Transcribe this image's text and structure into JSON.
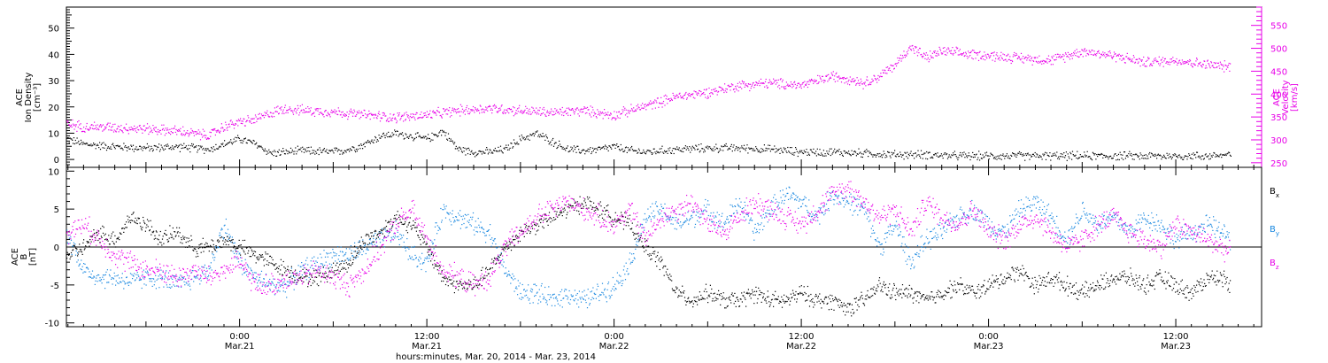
{
  "chart_data": [
    {
      "type": "scatter",
      "panel": "top",
      "ylabel": [
        "ACE",
        "Ion Density",
        "[cm⁻³]"
      ],
      "ylabel_right": [
        "ACE",
        "Velocity",
        "[km/s]"
      ],
      "ylim": [
        -3,
        58
      ],
      "ylim_right": [
        240,
        590
      ],
      "yticks": [
        0,
        10,
        20,
        30,
        40,
        50
      ],
      "yticks_right": [
        250,
        300,
        350,
        400,
        450,
        500,
        550
      ],
      "right_axis_color": "#e800e8",
      "x_unit": "hours since Mar. 20, 2014 00:00",
      "xlim": [
        12.9,
        89.5
      ],
      "series": [
        {
          "name": "Ion Density",
          "axis": "left",
          "color": "#000000",
          "x": [
            12.9,
            14,
            16,
            18,
            20,
            22,
            23,
            24,
            25,
            26,
            28,
            30,
            31,
            32,
            33,
            34,
            35,
            36,
            37,
            38,
            39,
            40,
            41,
            42,
            43,
            44,
            45,
            46,
            47,
            48,
            49,
            50,
            52,
            54,
            56,
            58,
            60,
            62,
            64,
            66,
            68,
            70,
            72,
            74,
            76,
            78,
            80,
            82,
            84,
            86,
            87.5
          ],
          "values": [
            8,
            6,
            5,
            4.5,
            5,
            4,
            6,
            8,
            6,
            2.5,
            3.5,
            3,
            4,
            6,
            9,
            10,
            9,
            8,
            11,
            4,
            3,
            3,
            4,
            8,
            10,
            7,
            4,
            3.5,
            4,
            5,
            3.5,
            3,
            4,
            4.5,
            4.5,
            4,
            3,
            3,
            2.5,
            2,
            2,
            1.5,
            1.5,
            1.5,
            1.5,
            1.5,
            1.5,
            1.5,
            1.5,
            1.5,
            2
          ]
        },
        {
          "name": "Velocity",
          "axis": "right",
          "color": "#e800e8",
          "x": [
            12.9,
            14,
            16,
            18,
            20,
            22,
            23,
            24,
            25,
            26,
            27,
            28,
            30,
            32,
            34,
            36,
            38,
            40,
            42,
            44,
            46,
            48,
            50,
            52,
            54,
            56,
            58,
            60,
            62,
            63,
            64,
            65,
            66,
            67,
            68,
            69,
            70,
            72,
            74,
            76,
            78,
            80,
            82,
            84,
            86,
            87.5
          ],
          "values": [
            335,
            330,
            328,
            325,
            320,
            310,
            330,
            340,
            345,
            360,
            370,
            365,
            362,
            355,
            350,
            355,
            365,
            370,
            365,
            360,
            365,
            355,
            375,
            395,
            405,
            420,
            425,
            420,
            440,
            435,
            425,
            440,
            465,
            505,
            480,
            495,
            490,
            485,
            480,
            475,
            495,
            485,
            470,
            475,
            465,
            460
          ]
        }
      ]
    },
    {
      "type": "scatter",
      "panel": "bottom",
      "ylabel": [
        "ACE",
        "B",
        "[nT]"
      ],
      "ylim": [
        -10.5,
        10.5
      ],
      "yticks": [
        -10,
        -5,
        0,
        5,
        10
      ],
      "zero_line": true,
      "x_unit": "hours since Mar. 20, 2014 00:00",
      "xlim": [
        12.9,
        89.5
      ],
      "series": [
        {
          "name": "Bx",
          "color": "#000000",
          "x": [
            12.9,
            14,
            15,
            16,
            17,
            18,
            19,
            20,
            21,
            22,
            23,
            24,
            25,
            26,
            27,
            28,
            29,
            30,
            31,
            32,
            33,
            34,
            35,
            36,
            37,
            38,
            39,
            40,
            41,
            42,
            43,
            44,
            45,
            46,
            47,
            48,
            49,
            50,
            51,
            52,
            53,
            54,
            55,
            56,
            57,
            58,
            59,
            60,
            61,
            62,
            63,
            64,
            65,
            66,
            67,
            68,
            69,
            70,
            71,
            72,
            73,
            74,
            75,
            76,
            77,
            78,
            79,
            80,
            81,
            82,
            83,
            84,
            85,
            86,
            87,
            87.5
          ],
          "values": [
            -1,
            0,
            2,
            1,
            4,
            3,
            1,
            2,
            0,
            0,
            1,
            0,
            -1,
            -2,
            -3,
            -4,
            -4,
            -3,
            -2,
            1,
            2,
            4,
            3,
            0,
            -4,
            -5,
            -5,
            -3,
            0,
            2,
            3,
            4,
            5,
            6,
            5,
            4,
            3,
            0,
            -2,
            -6,
            -7,
            -6,
            -7,
            -7,
            -6,
            -7,
            -7,
            -6,
            -7,
            -7,
            -8,
            -7,
            -5,
            -6,
            -6,
            -7,
            -6,
            -5,
            -6,
            -5,
            -4,
            -3,
            -5,
            -4,
            -5,
            -6,
            -5,
            -4,
            -4,
            -5,
            -4,
            -5,
            -6,
            -4,
            -4,
            -5
          ]
        },
        {
          "name": "By",
          "color": "#1a88e0",
          "x": [
            12.9,
            14,
            15,
            16,
            17,
            18,
            19,
            20,
            21,
            22,
            23,
            24,
            25,
            26,
            27,
            28,
            29,
            30,
            31,
            32,
            33,
            34,
            35,
            36,
            37,
            38,
            39,
            40,
            41,
            42,
            43,
            44,
            45,
            46,
            47,
            48,
            49,
            50,
            51,
            52,
            53,
            54,
            55,
            56,
            57,
            58,
            59,
            60,
            61,
            62,
            63,
            64,
            65,
            66,
            67,
            68,
            69,
            70,
            71,
            72,
            73,
            74,
            75,
            76,
            77,
            78,
            79,
            80,
            81,
            82,
            83,
            84,
            85,
            86,
            87,
            87.5
          ],
          "values": [
            2,
            -3,
            -4,
            -4,
            -4.5,
            -4,
            -4,
            -5,
            -4,
            -3,
            3,
            -2,
            -4,
            -5,
            -5,
            -3,
            -2,
            -1,
            -1,
            0,
            1,
            2,
            -1,
            -2,
            5,
            4,
            3,
            2,
            -3,
            -6,
            -6,
            -7,
            -6,
            -7,
            -6,
            -5,
            -2,
            4,
            5,
            3,
            4,
            5,
            3,
            6,
            2,
            5,
            7,
            6,
            4,
            7,
            6,
            5,
            0,
            3,
            -2,
            1,
            2,
            4,
            5,
            3,
            2,
            5,
            6,
            4,
            1,
            5,
            3,
            4,
            2,
            4,
            3,
            1,
            2,
            3,
            2,
            1
          ]
        },
        {
          "name": "Bz",
          "color": "#e800e8",
          "x": [
            12.9,
            14,
            15,
            16,
            17,
            18,
            19,
            20,
            21,
            22,
            23,
            24,
            25,
            26,
            27,
            28,
            29,
            30,
            31,
            32,
            33,
            34,
            35,
            36,
            37,
            38,
            39,
            40,
            41,
            42,
            43,
            44,
            45,
            46,
            47,
            48,
            49,
            50,
            51,
            52,
            53,
            54,
            55,
            56,
            57,
            58,
            59,
            60,
            61,
            62,
            63,
            64,
            65,
            66,
            67,
            68,
            69,
            70,
            71,
            72,
            73,
            74,
            75,
            76,
            77,
            78,
            79,
            80,
            81,
            82,
            83,
            84,
            85,
            86,
            87,
            87.5
          ],
          "values": [
            2,
            3,
            1,
            -1,
            -2,
            -3,
            -3,
            -4,
            -3,
            -4,
            -3,
            -2,
            -5,
            -5,
            -4,
            -4,
            -3,
            -4,
            -5,
            -3,
            0,
            3,
            5,
            1,
            -3,
            -4,
            -5,
            -4,
            0,
            2,
            4,
            5,
            6,
            5,
            4,
            3,
            5,
            1,
            4,
            5,
            6,
            3,
            2,
            4,
            6,
            5,
            4,
            3,
            5,
            7,
            8,
            6,
            4,
            5,
            2,
            6,
            4,
            3,
            5,
            2,
            1,
            3,
            4,
            2,
            0,
            1,
            3,
            4,
            2,
            1,
            0,
            3,
            2,
            1,
            0,
            -1
          ]
        }
      ],
      "legend": [
        {
          "label": "Bx",
          "text": "B",
          "sub": "x",
          "color": "#000000"
        },
        {
          "label": "By",
          "text": "B",
          "sub": "y",
          "color": "#1a88e0"
        },
        {
          "label": "Bz",
          "text": "B",
          "sub": "z",
          "color": "#e800e8"
        }
      ]
    }
  ],
  "x_axis": {
    "ticks": [
      {
        "hours": 24,
        "time": "0:00",
        "date": "Mar.21"
      },
      {
        "hours": 36,
        "time": "12:00",
        "date": "Mar.21"
      },
      {
        "hours": 48,
        "time": "0:00",
        "date": "Mar.22"
      },
      {
        "hours": 60,
        "time": "12:00",
        "date": "Mar.22"
      },
      {
        "hours": 72,
        "time": "0:00",
        "date": "Mar.23"
      },
      {
        "hours": 84,
        "time": "12:00",
        "date": "Mar.23"
      }
    ],
    "xlabel": "hours:minutes, Mar. 20, 2014 - Mar. 23, 2014"
  }
}
